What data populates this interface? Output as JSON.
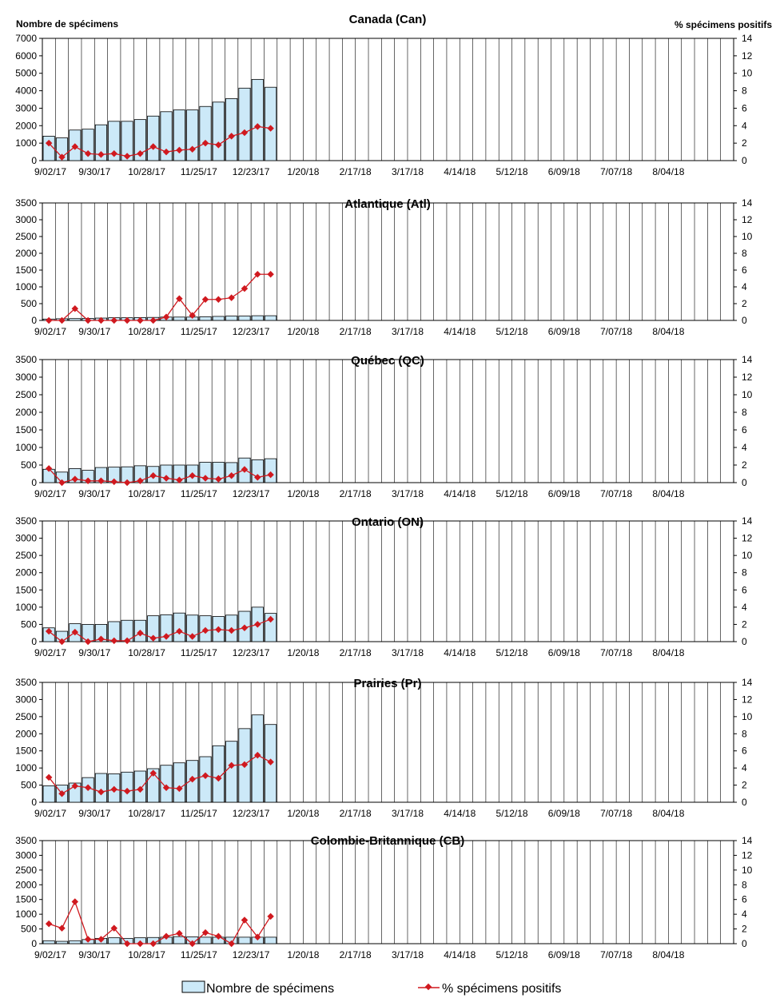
{
  "header": {
    "left_axis_title": "Nombre de spécimens",
    "right_axis_title": "% spécimens positifs"
  },
  "legend": {
    "bar_label": "Nombre de spécimens",
    "line_label": "% spécimens positifs"
  },
  "colors": {
    "bar_fill": "#cce9f8",
    "bar_stroke": "#000000",
    "line": "#d0191f",
    "grid": "#000000"
  },
  "x_tick_labels": [
    "9/02/17",
    "9/30/17",
    "10/28/17",
    "11/25/17",
    "12/23/17",
    "1/20/18",
    "2/17/18",
    "3/17/18",
    "4/14/18",
    "5/12/18",
    "6/09/18",
    "7/07/18",
    "8/04/18"
  ],
  "chart_data": [
    {
      "type": "bar",
      "title": "Canada (Can)",
      "ylim": [
        0,
        7000
      ],
      "y2lim": [
        0,
        14
      ],
      "y_ticks": [
        "0",
        "1000",
        "2000",
        "3000",
        "4000",
        "5000",
        "6000",
        "7000"
      ],
      "y2_ticks": [
        "0",
        "2",
        "4",
        "6",
        "8",
        "10",
        "12",
        "14"
      ],
      "series": [
        {
          "name": "Nombre de spécimens",
          "values": [
            1400,
            1300,
            1750,
            1800,
            2050,
            2250,
            2250,
            2350,
            2550,
            2800,
            2900,
            2900,
            3100,
            3350,
            3550,
            4150,
            4650,
            4200
          ]
        },
        {
          "name": "% spécimens positifs",
          "values": [
            2.0,
            0.4,
            1.6,
            0.8,
            0.7,
            0.8,
            0.5,
            0.8,
            1.6,
            1.0,
            1.2,
            1.3,
            2.0,
            1.8,
            2.8,
            3.2,
            3.9,
            3.7
          ]
        }
      ]
    },
    {
      "type": "bar",
      "title": "Atlantique (Atl)",
      "ylim": [
        0,
        3500
      ],
      "y2lim": [
        0,
        14
      ],
      "y_ticks": [
        "0",
        "500",
        "1000",
        "1500",
        "2000",
        "2500",
        "3000",
        "3500"
      ],
      "y2_ticks": [
        "0",
        "2",
        "4",
        "6",
        "8",
        "10",
        "12",
        "14"
      ],
      "series": [
        {
          "name": "Nombre de spécimens",
          "values": [
            40,
            50,
            55,
            60,
            70,
            80,
            80,
            85,
            90,
            100,
            100,
            100,
            110,
            120,
            130,
            130,
            140,
            140
          ]
        },
        {
          "name": "% spécimens positifs",
          "values": [
            0,
            0,
            1.4,
            0,
            0,
            0,
            0,
            0,
            0,
            0.4,
            2.6,
            0.6,
            2.5,
            2.5,
            2.7,
            3.8,
            5.5,
            5.5
          ]
        }
      ]
    },
    {
      "type": "bar",
      "title": "Québec (QC)",
      "ylim": [
        0,
        3500
      ],
      "y2lim": [
        0,
        14
      ],
      "y_ticks": [
        "0",
        "500",
        "1000",
        "1500",
        "2000",
        "2500",
        "3000",
        "3500"
      ],
      "y2_ticks": [
        "0",
        "2",
        "4",
        "6",
        "8",
        "10",
        "12",
        "14"
      ],
      "series": [
        {
          "name": "Nombre de spécimens",
          "values": [
            380,
            300,
            400,
            350,
            430,
            440,
            450,
            480,
            460,
            500,
            500,
            500,
            580,
            580,
            570,
            700,
            650,
            680
          ]
        },
        {
          "name": "% spécimens positifs",
          "values": [
            1.6,
            0,
            0.4,
            0.2,
            0.2,
            0.1,
            0,
            0.2,
            0.8,
            0.5,
            0.3,
            0.8,
            0.5,
            0.4,
            0.8,
            1.5,
            0.6,
            0.9
          ]
        }
      ]
    },
    {
      "type": "bar",
      "title": "Ontario (ON)",
      "ylim": [
        0,
        3500
      ],
      "y2lim": [
        0,
        14
      ],
      "y_ticks": [
        "0",
        "500",
        "1000",
        "1500",
        "2000",
        "2500",
        "3000",
        "3500"
      ],
      "y2_ticks": [
        "0",
        "2",
        "4",
        "6",
        "8",
        "10",
        "12",
        "14"
      ],
      "series": [
        {
          "name": "Nombre de spécimens",
          "values": [
            400,
            300,
            520,
            500,
            500,
            580,
            620,
            620,
            750,
            780,
            830,
            770,
            750,
            730,
            770,
            880,
            1000,
            820
          ]
        },
        {
          "name": "% spécimens positifs",
          "values": [
            1.2,
            0,
            1.1,
            0,
            0.3,
            0.1,
            0.1,
            1.0,
            0.4,
            0.6,
            1.2,
            0.6,
            1.3,
            1.4,
            1.3,
            1.6,
            2.0,
            2.6
          ]
        }
      ]
    },
    {
      "type": "bar",
      "title": "Prairies (Pr)",
      "ylim": [
        0,
        3500
      ],
      "y2lim": [
        0,
        14
      ],
      "y_ticks": [
        "0",
        "500",
        "1000",
        "1500",
        "2000",
        "2500",
        "3000",
        "3500"
      ],
      "y2_ticks": [
        "0",
        "2",
        "4",
        "6",
        "8",
        "10",
        "12",
        "14"
      ],
      "series": [
        {
          "name": "Nombre de spécimens",
          "values": [
            480,
            500,
            560,
            720,
            840,
            830,
            880,
            910,
            980,
            1080,
            1150,
            1220,
            1330,
            1650,
            1780,
            2150,
            2550,
            2270
          ]
        },
        {
          "name": "% spécimens positifs",
          "values": [
            2.9,
            1.0,
            1.9,
            1.7,
            1.2,
            1.5,
            1.3,
            1.5,
            3.4,
            1.7,
            1.6,
            2.7,
            3.1,
            2.8,
            4.3,
            4.4,
            5.5,
            4.7
          ]
        }
      ]
    },
    {
      "type": "bar",
      "title": "Colombie-Britannique (CB)",
      "ylim": [
        0,
        3500
      ],
      "y2lim": [
        0,
        14
      ],
      "y_ticks": [
        "0",
        "500",
        "1000",
        "1500",
        "2000",
        "2500",
        "3000",
        "3500"
      ],
      "y2_ticks": [
        "0",
        "2",
        "4",
        "6",
        "8",
        "10",
        "12",
        "14"
      ],
      "series": [
        {
          "name": "Nombre de spécimens",
          "values": [
            100,
            80,
            100,
            140,
            180,
            200,
            180,
            200,
            210,
            220,
            240,
            230,
            220,
            220,
            220,
            220,
            220,
            220
          ]
        },
        {
          "name": "% spécimens positifs",
          "values": [
            2.7,
            2.1,
            5.7,
            0.6,
            0.6,
            2.1,
            0,
            0,
            0,
            1.0,
            1.4,
            0,
            1.5,
            1.0,
            0,
            3.2,
            0.9,
            3.7
          ]
        }
      ]
    }
  ]
}
